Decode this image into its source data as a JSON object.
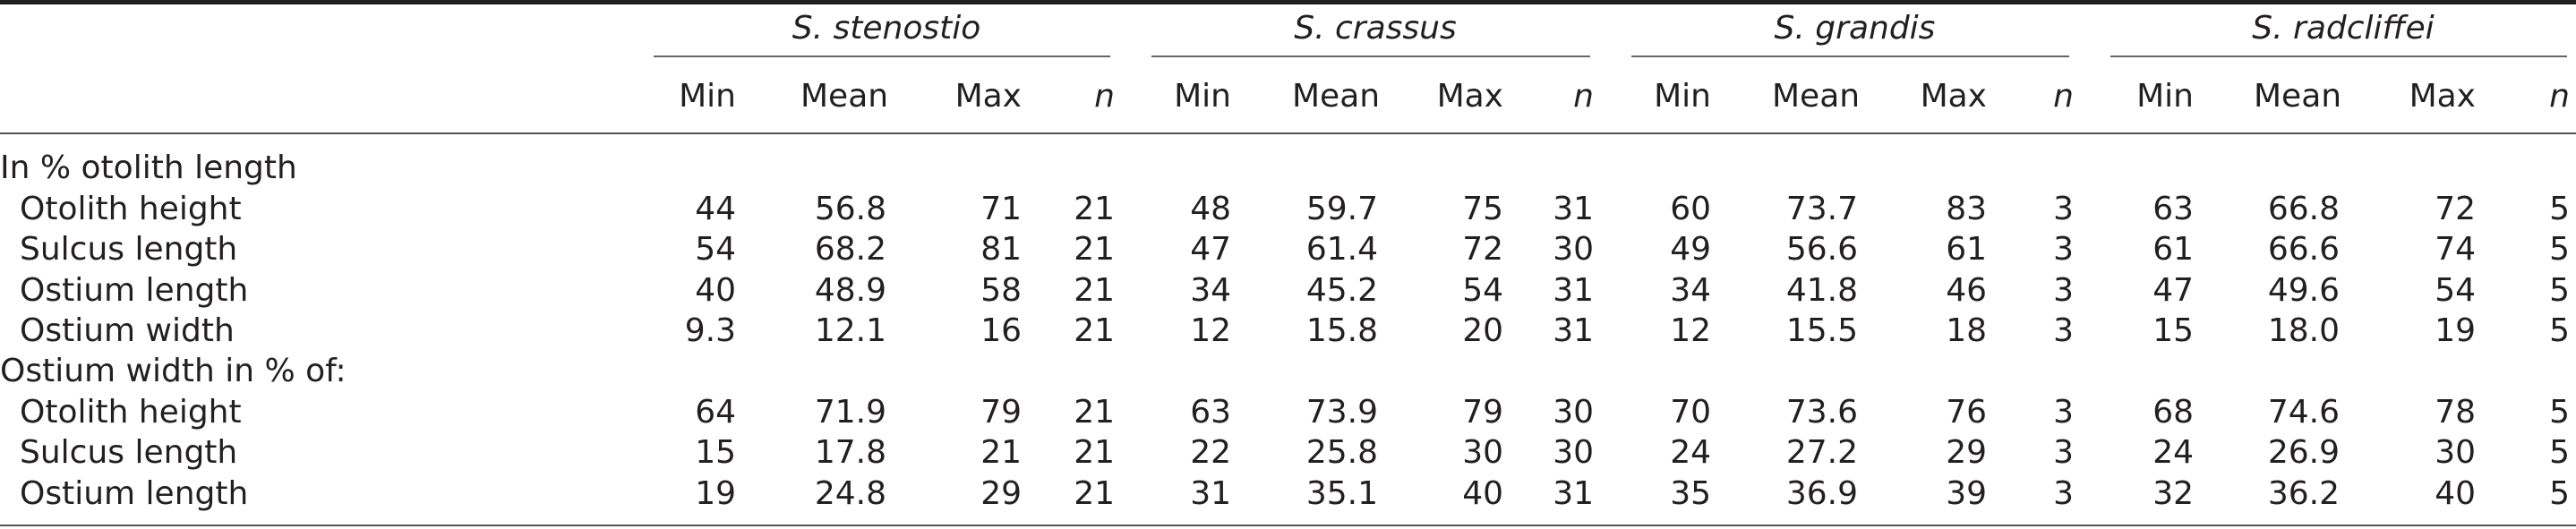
{
  "species": [
    "S. stenostio",
    "S. crassus",
    "S. grandis",
    "S. radcliffei"
  ],
  "column_headers": [
    "Min",
    "Mean",
    "Max",
    "n"
  ],
  "sections": [
    {
      "title": "In % otolith length",
      "rows": [
        {
          "label": "Otolith height",
          "values": [
            "44",
            "56.8",
            "71",
            "21",
            "48",
            "59.7",
            "75",
            "31",
            "60",
            "73.7",
            "83",
            "3",
            "63",
            "66.8",
            "72",
            "5"
          ]
        },
        {
          "label": "Sulcus length",
          "values": [
            "54",
            "68.2",
            "81",
            "21",
            "47",
            "61.4",
            "72",
            "30",
            "49",
            "56.6",
            "61",
            "3",
            "61",
            "66.6",
            "74",
            "5"
          ]
        },
        {
          "label": "Ostium length",
          "values": [
            "40",
            "48.9",
            "58",
            "21",
            "34",
            "45.2",
            "54",
            "31",
            "34",
            "41.8",
            "46",
            "3",
            "47",
            "49.6",
            "54",
            "5"
          ]
        },
        {
          "label": "Ostium width",
          "values": [
            "9.3",
            "12.1",
            "16",
            "21",
            "12",
            "15.8",
            "20",
            "31",
            "12",
            "15.5",
            "18",
            "3",
            "15",
            "18.0",
            "19",
            "5"
          ]
        }
      ]
    },
    {
      "title": "Ostium width in % of:",
      "rows": [
        {
          "label": "Otolith height",
          "values": [
            "64",
            "71.9",
            "79",
            "21",
            "63",
            "73.9",
            "79",
            "30",
            "70",
            "73.6",
            "76",
            "3",
            "68",
            "74.6",
            "78",
            "5"
          ]
        },
        {
          "label": "Sulcus length",
          "values": [
            "15",
            "17.8",
            "21",
            "21",
            "22",
            "25.8",
            "30",
            "30",
            "24",
            "27.2",
            "29",
            "3",
            "24",
            "26.9",
            "30",
            "5"
          ]
        },
        {
          "label": "Ostium length",
          "values": [
            "19",
            "24.8",
            "29",
            "21",
            "31",
            "35.1",
            "40",
            "31",
            "35",
            "36.9",
            "39",
            "3",
            "32",
            "36.2",
            "40",
            "5"
          ]
        }
      ]
    }
  ]
}
